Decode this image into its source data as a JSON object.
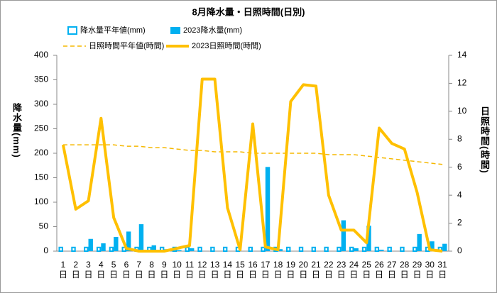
{
  "chart_data": {
    "type": "bar_line",
    "title": "8月降水量・日照時間(日別)",
    "ylabel": "降水量(mm)",
    "y2label": "日照時間(時間)",
    "categories": [
      "1日",
      "2日",
      "3日",
      "4日",
      "5日",
      "6日",
      "7日",
      "8日",
      "9日",
      "10日",
      "11日",
      "12日",
      "13日",
      "14日",
      "15日",
      "16日",
      "17日",
      "18日",
      "19日",
      "20日",
      "21日",
      "22日",
      "23日",
      "24日",
      "25日",
      "26日",
      "27日",
      "28日",
      "29日",
      "30日",
      "31日"
    ],
    "ylim": [
      0,
      400
    ],
    "yticks": [
      0,
      50,
      100,
      150,
      200,
      250,
      300,
      350,
      400
    ],
    "y2lim": [
      0,
      14
    ],
    "y2ticks": [
      0,
      2,
      4,
      6,
      8,
      10,
      12,
      14
    ],
    "series": [
      {
        "name": "降水量平年値(mm)",
        "kind": "bar",
        "style": "hollow",
        "color": "#00b0f0",
        "axis": "y",
        "values": [
          9,
          9,
          9,
          9,
          9,
          9,
          9,
          9,
          9,
          9,
          9,
          9,
          9,
          9,
          9,
          9,
          9,
          9,
          9,
          9,
          9,
          9,
          9,
          9,
          9,
          9,
          9,
          9,
          9,
          9,
          9
        ]
      },
      {
        "name": "2023降水量(mm)",
        "kind": "bar",
        "style": "solid",
        "color": "#00b0f0",
        "axis": "y",
        "values": [
          0,
          0,
          25,
          16,
          29,
          40,
          55,
          12,
          4,
          2,
          6,
          0,
          0,
          0,
          0,
          0,
          172,
          4,
          0,
          0,
          0,
          0,
          63,
          6,
          52,
          3,
          0,
          0,
          35,
          20,
          15
        ]
      },
      {
        "name": "日照時間平年値(時間)",
        "kind": "line",
        "style": "dashed",
        "color": "#f5b800",
        "axis": "y2",
        "values": [
          7.6,
          7.6,
          7.6,
          7.6,
          7.6,
          7.5,
          7.5,
          7.4,
          7.4,
          7.3,
          7.2,
          7.2,
          7.1,
          7.1,
          7.1,
          7.0,
          7.0,
          7.0,
          7.0,
          7.0,
          7.0,
          6.9,
          6.9,
          6.9,
          6.8,
          6.7,
          6.6,
          6.5,
          6.4,
          6.3,
          6.2
        ]
      },
      {
        "name": "2023日照時間(時間)",
        "kind": "line",
        "style": "solid",
        "color": "#ffc000",
        "axis": "y2",
        "values": [
          7.6,
          3.0,
          3.6,
          9.5,
          2.4,
          0.2,
          0,
          0,
          0,
          0.2,
          0.4,
          12.3,
          12.3,
          3.1,
          0.1,
          9.1,
          0.3,
          0.1,
          10.7,
          11.9,
          11.8,
          4.0,
          1.5,
          1.5,
          0.6,
          8.8,
          7.7,
          7.3,
          4.2,
          0.1,
          0
        ]
      }
    ]
  }
}
